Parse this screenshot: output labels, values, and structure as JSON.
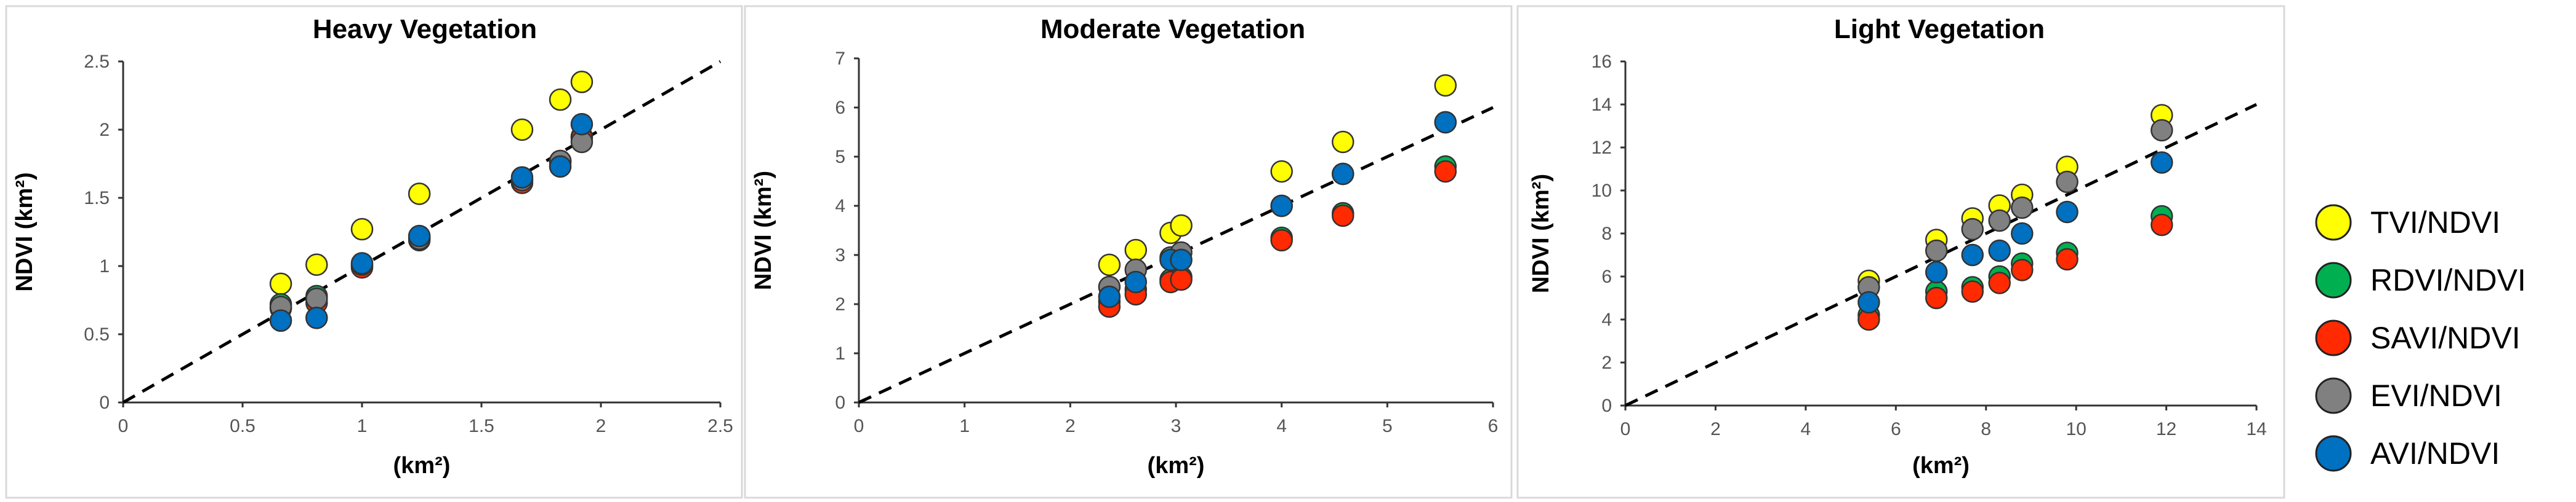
{
  "chart_data": [
    {
      "type": "scatter",
      "title": "Heavy Vegetation",
      "xlabel": "(km²)",
      "ylabel": "NDVI (km²)",
      "xlim": [
        0,
        2.5
      ],
      "ylim": [
        0,
        2.5
      ],
      "xticks": [
        0,
        0.5,
        1,
        1.5,
        2,
        2.5
      ],
      "yticks": [
        0,
        0.5,
        1,
        1.5,
        2,
        2.5
      ],
      "xtick_labels": [
        "0",
        "0.5",
        "1",
        "1.5",
        "2",
        "2.5"
      ],
      "ytick_labels": [
        "0",
        "0.5",
        "1",
        "1.5",
        "2",
        "2.5"
      ],
      "reference_line": "1:1 dashed",
      "series": [
        {
          "name": "TVI/NDVI",
          "color": "#ffff00",
          "x": [
            0.66,
            0.81,
            1.0,
            1.24,
            1.67,
            1.83,
            1.92
          ],
          "y": [
            0.87,
            1.01,
            1.27,
            1.53,
            2.0,
            2.22,
            2.35
          ]
        },
        {
          "name": "RDVI/NDVI",
          "color": "#00b050",
          "x": [
            0.66,
            0.81,
            1.0,
            1.24,
            1.67,
            1.83,
            1.92
          ],
          "y": [
            0.72,
            0.78,
            1.0,
            1.21,
            1.63,
            1.77,
            1.95
          ]
        },
        {
          "name": "SAVI/NDVI",
          "color": "#ff2a00",
          "x": [
            0.66,
            0.81,
            1.0,
            1.24,
            1.67,
            1.83,
            1.92
          ],
          "y": [
            0.69,
            0.73,
            0.99,
            1.19,
            1.61,
            1.76,
            1.94
          ]
        },
        {
          "name": "EVI/NDVI",
          "color": "#808080",
          "x": [
            0.66,
            0.81,
            1.0,
            1.24,
            1.67,
            1.83,
            1.92
          ],
          "y": [
            0.7,
            0.76,
            1.01,
            1.2,
            1.63,
            1.77,
            1.91
          ]
        },
        {
          "name": "AVI/NDVI",
          "color": "#0070c0",
          "x": [
            0.66,
            0.81,
            1.0,
            1.24,
            1.67,
            1.83,
            1.92
          ],
          "y": [
            0.6,
            0.62,
            1.02,
            1.22,
            1.65,
            1.73,
            2.04
          ]
        }
      ]
    },
    {
      "type": "scatter",
      "title": "Moderate Vegetation",
      "xlabel": "(km²)",
      "ylabel": "NDVI (km²)",
      "xlim": [
        0,
        6
      ],
      "ylim": [
        0,
        7
      ],
      "xticks": [
        0,
        1,
        2,
        3,
        4,
        5,
        6
      ],
      "yticks": [
        0,
        1,
        2,
        3,
        4,
        5,
        6,
        7
      ],
      "xtick_labels": [
        "0",
        "1",
        "2",
        "3",
        "4",
        "5",
        "6"
      ],
      "ytick_labels": [
        "0",
        "1",
        "2",
        "3",
        "4",
        "5",
        "6",
        "7"
      ],
      "reference_line": "1:1 dashed",
      "series": [
        {
          "name": "TVI/NDVI",
          "color": "#ffff00",
          "x": [
            2.37,
            2.62,
            2.95,
            3.05,
            4.0,
            4.58,
            5.55
          ],
          "y": [
            2.8,
            3.1,
            3.45,
            3.6,
            4.7,
            5.3,
            6.45
          ]
        },
        {
          "name": "RDVI/NDVI",
          "color": "#00b050",
          "x": [
            2.37,
            2.62,
            2.95,
            3.05,
            4.0,
            4.58,
            5.55
          ],
          "y": [
            2.05,
            2.3,
            2.5,
            2.55,
            3.35,
            3.85,
            4.8
          ]
        },
        {
          "name": "SAVI/NDVI",
          "color": "#ff2a00",
          "x": [
            2.37,
            2.62,
            2.95,
            3.05,
            4.0,
            4.58,
            5.55
          ],
          "y": [
            1.95,
            2.2,
            2.45,
            2.5,
            3.3,
            3.8,
            4.7
          ]
        },
        {
          "name": "EVI/NDVI",
          "color": "#808080",
          "x": [
            2.37,
            2.62,
            2.95,
            3.05,
            4.0,
            4.58,
            5.55
          ],
          "y": [
            2.35,
            2.7,
            2.95,
            3.05,
            4.0,
            4.65,
            5.7
          ]
        },
        {
          "name": "AVI/NDVI",
          "color": "#0070c0",
          "x": [
            2.37,
            2.62,
            2.95,
            3.05,
            4.0,
            4.58,
            5.55
          ],
          "y": [
            2.15,
            2.45,
            2.9,
            2.9,
            4.0,
            4.65,
            5.7
          ]
        }
      ]
    },
    {
      "type": "scatter",
      "title": "Light Vegetation",
      "xlabel": "(km²)",
      "ylabel": "NDVI (km²)",
      "xlim": [
        0,
        14
      ],
      "ylim": [
        0,
        16
      ],
      "xticks": [
        0,
        2,
        4,
        6,
        8,
        10,
        12,
        14
      ],
      "yticks": [
        0,
        2,
        4,
        6,
        8,
        10,
        12,
        14,
        16
      ],
      "xtick_labels": [
        "0",
        "2",
        "4",
        "6",
        "8",
        "10",
        "12",
        "14"
      ],
      "ytick_labels": [
        "0",
        "2",
        "4",
        "6",
        "8",
        "10",
        "12",
        "14",
        "16"
      ],
      "reference_line": "1:1 dashed",
      "series": [
        {
          "name": "TVI/NDVI",
          "color": "#ffff00",
          "x": [
            5.4,
            6.9,
            7.7,
            8.3,
            8.8,
            9.8,
            11.9
          ],
          "y": [
            5.8,
            7.7,
            8.7,
            9.3,
            9.8,
            11.1,
            13.5
          ]
        },
        {
          "name": "RDVI/NDVI",
          "color": "#00b050",
          "x": [
            5.4,
            6.9,
            7.7,
            8.3,
            8.8,
            9.8,
            11.9
          ],
          "y": [
            4.2,
            5.3,
            5.5,
            6.0,
            6.6,
            7.1,
            8.8
          ]
        },
        {
          "name": "SAVI/NDVI",
          "color": "#ff2a00",
          "x": [
            5.4,
            6.9,
            7.7,
            8.3,
            8.8,
            9.8,
            11.9
          ],
          "y": [
            4.0,
            5.0,
            5.3,
            5.7,
            6.3,
            6.8,
            8.4
          ]
        },
        {
          "name": "EVI/NDVI",
          "color": "#808080",
          "x": [
            5.4,
            6.9,
            7.7,
            8.3,
            8.8,
            9.8,
            11.9
          ],
          "y": [
            5.5,
            7.2,
            8.2,
            8.6,
            9.2,
            10.4,
            12.8
          ]
        },
        {
          "name": "AVI/NDVI",
          "color": "#0070c0",
          "x": [
            5.4,
            6.9,
            7.7,
            8.3,
            8.8,
            9.8,
            11.9
          ],
          "y": [
            4.8,
            6.2,
            7.0,
            7.2,
            8.0,
            9.0,
            11.3
          ]
        }
      ]
    }
  ],
  "legend": {
    "placement": "right",
    "items": [
      {
        "label": "TVI/NDVI",
        "color": "#ffff00"
      },
      {
        "label": "RDVI/NDVI",
        "color": "#00b050"
      },
      {
        "label": "SAVI/NDVI",
        "color": "#ff2a00"
      },
      {
        "label": "EVI/NDVI",
        "color": "#808080"
      },
      {
        "label": "AVI/NDVI",
        "color": "#0070c0"
      }
    ]
  }
}
